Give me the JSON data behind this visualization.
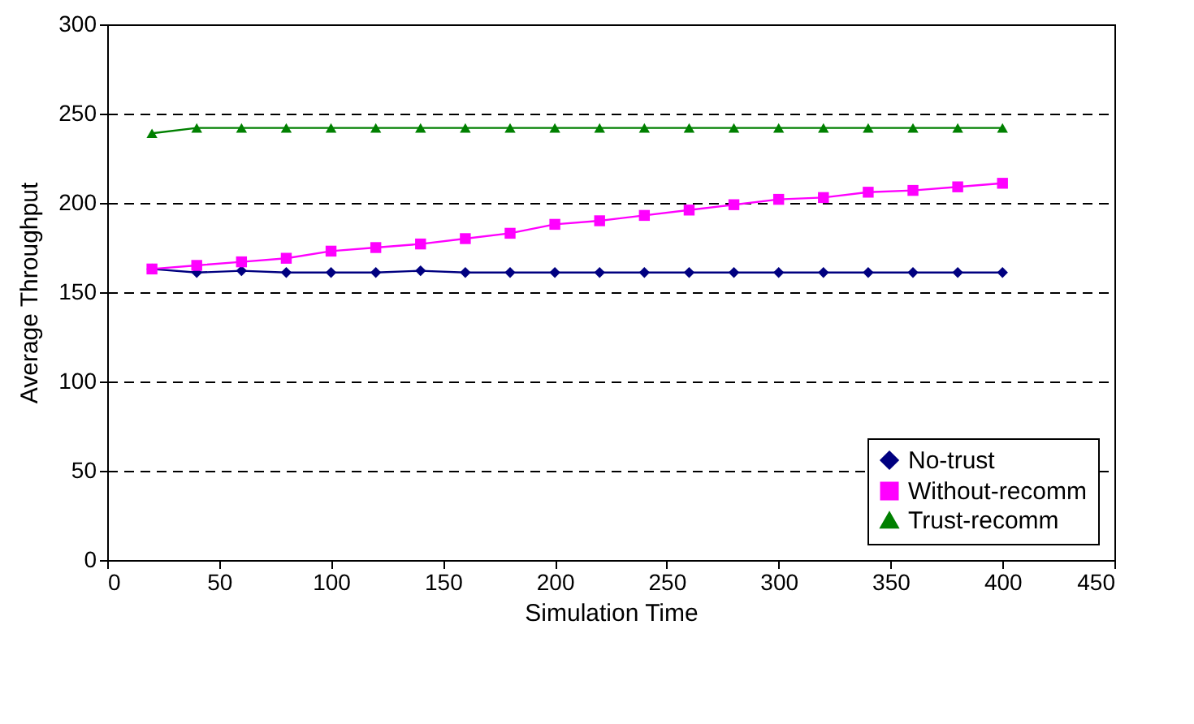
{
  "chart_data": {
    "type": "line",
    "xlabel": "Simulation Time",
    "ylabel": "Average Throughput",
    "x": [
      20,
      40,
      60,
      80,
      100,
      120,
      140,
      160,
      180,
      200,
      220,
      240,
      260,
      280,
      300,
      320,
      340,
      360,
      380,
      400
    ],
    "series": [
      {
        "name": "No-trust",
        "color": "#000080",
        "marker": "diamond",
        "values": [
          163,
          161,
          162,
          161,
          161,
          161,
          162,
          161,
          161,
          161,
          161,
          161,
          161,
          161,
          161,
          161,
          161,
          161,
          161,
          161
        ]
      },
      {
        "name": "Without-recomm",
        "color": "#ff00ff",
        "marker": "square",
        "values": [
          163,
          165,
          167,
          169,
          173,
          175,
          177,
          180,
          183,
          188,
          190,
          193,
          196,
          199,
          202,
          203,
          206,
          207,
          209,
          211
        ]
      },
      {
        "name": "Trust-recomm",
        "color": "#008000",
        "marker": "triangle",
        "values": [
          239,
          242,
          242,
          242,
          242,
          242,
          242,
          242,
          242,
          242,
          242,
          242,
          242,
          242,
          242,
          242,
          242,
          242,
          242,
          242
        ]
      }
    ],
    "xlim": [
      0,
      450
    ],
    "xticks": [
      0,
      50,
      100,
      150,
      200,
      250,
      300,
      350,
      400,
      450
    ],
    "ylim": [
      0,
      300
    ],
    "yticks": [
      0,
      50,
      100,
      150,
      200,
      250,
      300
    ],
    "grid": "y",
    "legend": "bottom right"
  }
}
